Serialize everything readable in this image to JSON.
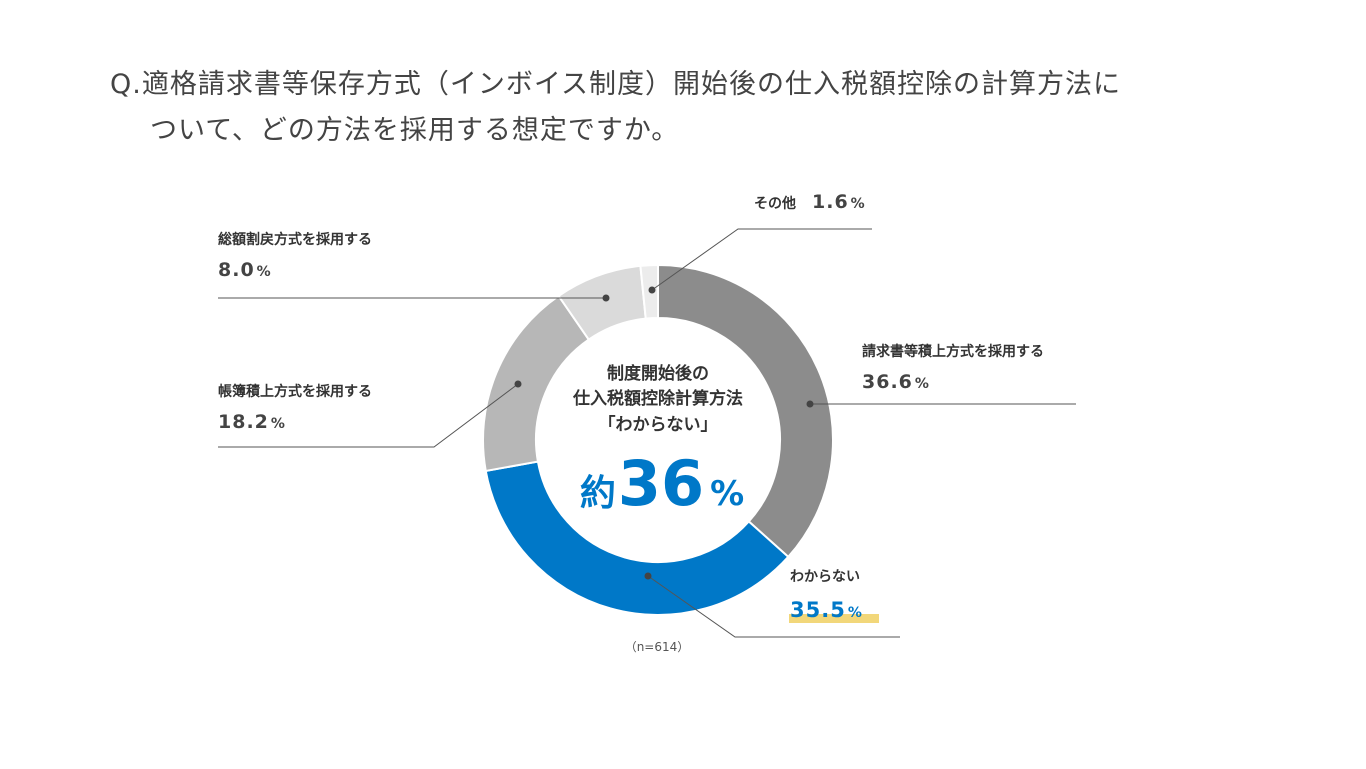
{
  "question": {
    "line1": "Q.適格請求書等保存方式（インボイス制度）開始後の仕入税額控除の計算方法に",
    "line2": "ついて、どの方法を採用する想定ですか。"
  },
  "center": {
    "line1": "制度開始後の",
    "line2": "仕入税額控除計算方法",
    "line3": "「わからない」",
    "prefix": "約",
    "number": "36",
    "unit": "%"
  },
  "note": "（n=614）",
  "colors": {
    "accent": "#0078c8",
    "highlight": "#f2d77a"
  },
  "chart_data": {
    "type": "pie",
    "variant": "donut",
    "start": "top",
    "direction": "clockwise",
    "n": 614,
    "slices": [
      {
        "name": "請求書等積上方式を採用する",
        "value": 36.6,
        "display": "36.6",
        "unit": "%",
        "color": "#8c8c8c"
      },
      {
        "name": "わからない",
        "value": 35.5,
        "display": "35.5",
        "unit": "%",
        "color": "#0078c8"
      },
      {
        "name": "帳簿積上方式を採用する",
        "value": 18.2,
        "display": "18.2",
        "unit": "%",
        "color": "#b7b7b7"
      },
      {
        "name": "総額割戻方式を採用する",
        "value": 8.0,
        "display": "8.0",
        "unit": "%",
        "color": "#dadada"
      },
      {
        "name": "その他",
        "value": 1.6,
        "display": "1.6",
        "unit": "%",
        "color": "#ececec"
      }
    ]
  }
}
